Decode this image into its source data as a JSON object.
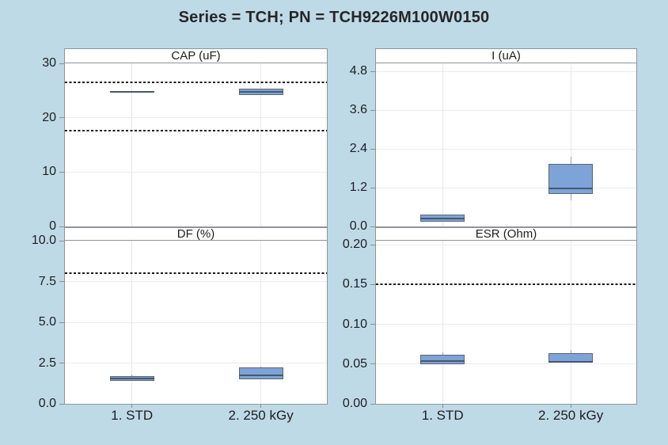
{
  "title": "Series = TCH; PN = TCH9226M100W0150",
  "colors": {
    "background": "#bedae7",
    "panel_background": "#ffffff",
    "panel_border": "#8f9499",
    "gridline": "#e9e9e9",
    "box_fill": "#7da3d8",
    "box_border": "#5c6670",
    "median_line": "#47586a",
    "whisker": "#9e9e9e",
    "spec_limit_line": "#161616",
    "text": "#1e1e1e"
  },
  "chart_data": [
    {
      "id": "cap",
      "type": "box",
      "title": "CAP (uF)",
      "position": "top-left",
      "categories": [
        "1. STD",
        "2. 250 kGy"
      ],
      "show_x_labels": false,
      "ylim": [
        0,
        30
      ],
      "yticks": [
        0,
        10,
        20,
        30
      ],
      "ytick_labels": [
        "0",
        "10",
        "20",
        "30"
      ],
      "spec_limits": [
        26.5,
        17.6
      ],
      "boxes": [
        {
          "category": "1. STD",
          "q1": 24.55,
          "median": 24.7,
          "q3": 24.85,
          "whisker_low": null,
          "whisker_high": null
        },
        {
          "category": "2. 250 kGy",
          "q1": 24.1,
          "median": 24.8,
          "q3": 25.3,
          "whisker_low": null,
          "whisker_high": null
        }
      ]
    },
    {
      "id": "i",
      "type": "box",
      "title": "I (uA)",
      "position": "top-right",
      "categories": [
        "1. STD",
        "2. 250 kGy"
      ],
      "show_x_labels": false,
      "ylim": [
        0,
        5.05
      ],
      "yticks": [
        0,
        1.2,
        2.4,
        3.6,
        4.8
      ],
      "ytick_labels": [
        "0.0",
        "1.2",
        "2.4",
        "3.6",
        "4.8"
      ],
      "spec_limits": [],
      "boxes": [
        {
          "category": "1. STD",
          "q1": 0.15,
          "median": 0.25,
          "q3": 0.38,
          "whisker_low": null,
          "whisker_high": null
        },
        {
          "category": "2. 250 kGy",
          "q1": 1.0,
          "median": 1.17,
          "q3": 1.95,
          "whisker_low": 0.8,
          "whisker_high": 2.17
        }
      ]
    },
    {
      "id": "df",
      "type": "box",
      "title": "DF (%)",
      "position": "bottom-left",
      "categories": [
        "1. STD",
        "2. 250 kGy"
      ],
      "show_x_labels": true,
      "ylim": [
        0,
        10
      ],
      "yticks": [
        0,
        2.5,
        5,
        7.5,
        10
      ],
      "ytick_labels": [
        "0.0",
        "2.5",
        "5.0",
        "7.5",
        "10.0"
      ],
      "spec_limits": [
        8.0
      ],
      "boxes": [
        {
          "category": "1. STD",
          "q1": 1.42,
          "median": 1.55,
          "q3": 1.68,
          "whisker_low": null,
          "whisker_high": 1.8
        },
        {
          "category": "2. 250 kGy",
          "q1": 1.5,
          "median": 1.75,
          "q3": 2.25,
          "whisker_low": null,
          "whisker_high": 2.3
        }
      ]
    },
    {
      "id": "esr",
      "type": "box",
      "title": "ESR (Ohm)",
      "position": "bottom-right",
      "categories": [
        "1. STD",
        "2. 250 kGy"
      ],
      "show_x_labels": true,
      "ylim": [
        0,
        0.205
      ],
      "yticks": [
        0,
        0.05,
        0.1,
        0.15,
        0.2
      ],
      "ytick_labels": [
        "0.00",
        "0.05",
        "0.10",
        "0.15",
        "0.20"
      ],
      "spec_limits": [
        0.15
      ],
      "boxes": [
        {
          "category": "1. STD",
          "q1": 0.05,
          "median": 0.054,
          "q3": 0.062,
          "whisker_low": null,
          "whisker_high": 0.065
        },
        {
          "category": "2. 250 kGy",
          "q1": 0.052,
          "median": 0.053,
          "q3": 0.064,
          "whisker_low": null,
          "whisker_high": 0.068
        }
      ]
    }
  ]
}
